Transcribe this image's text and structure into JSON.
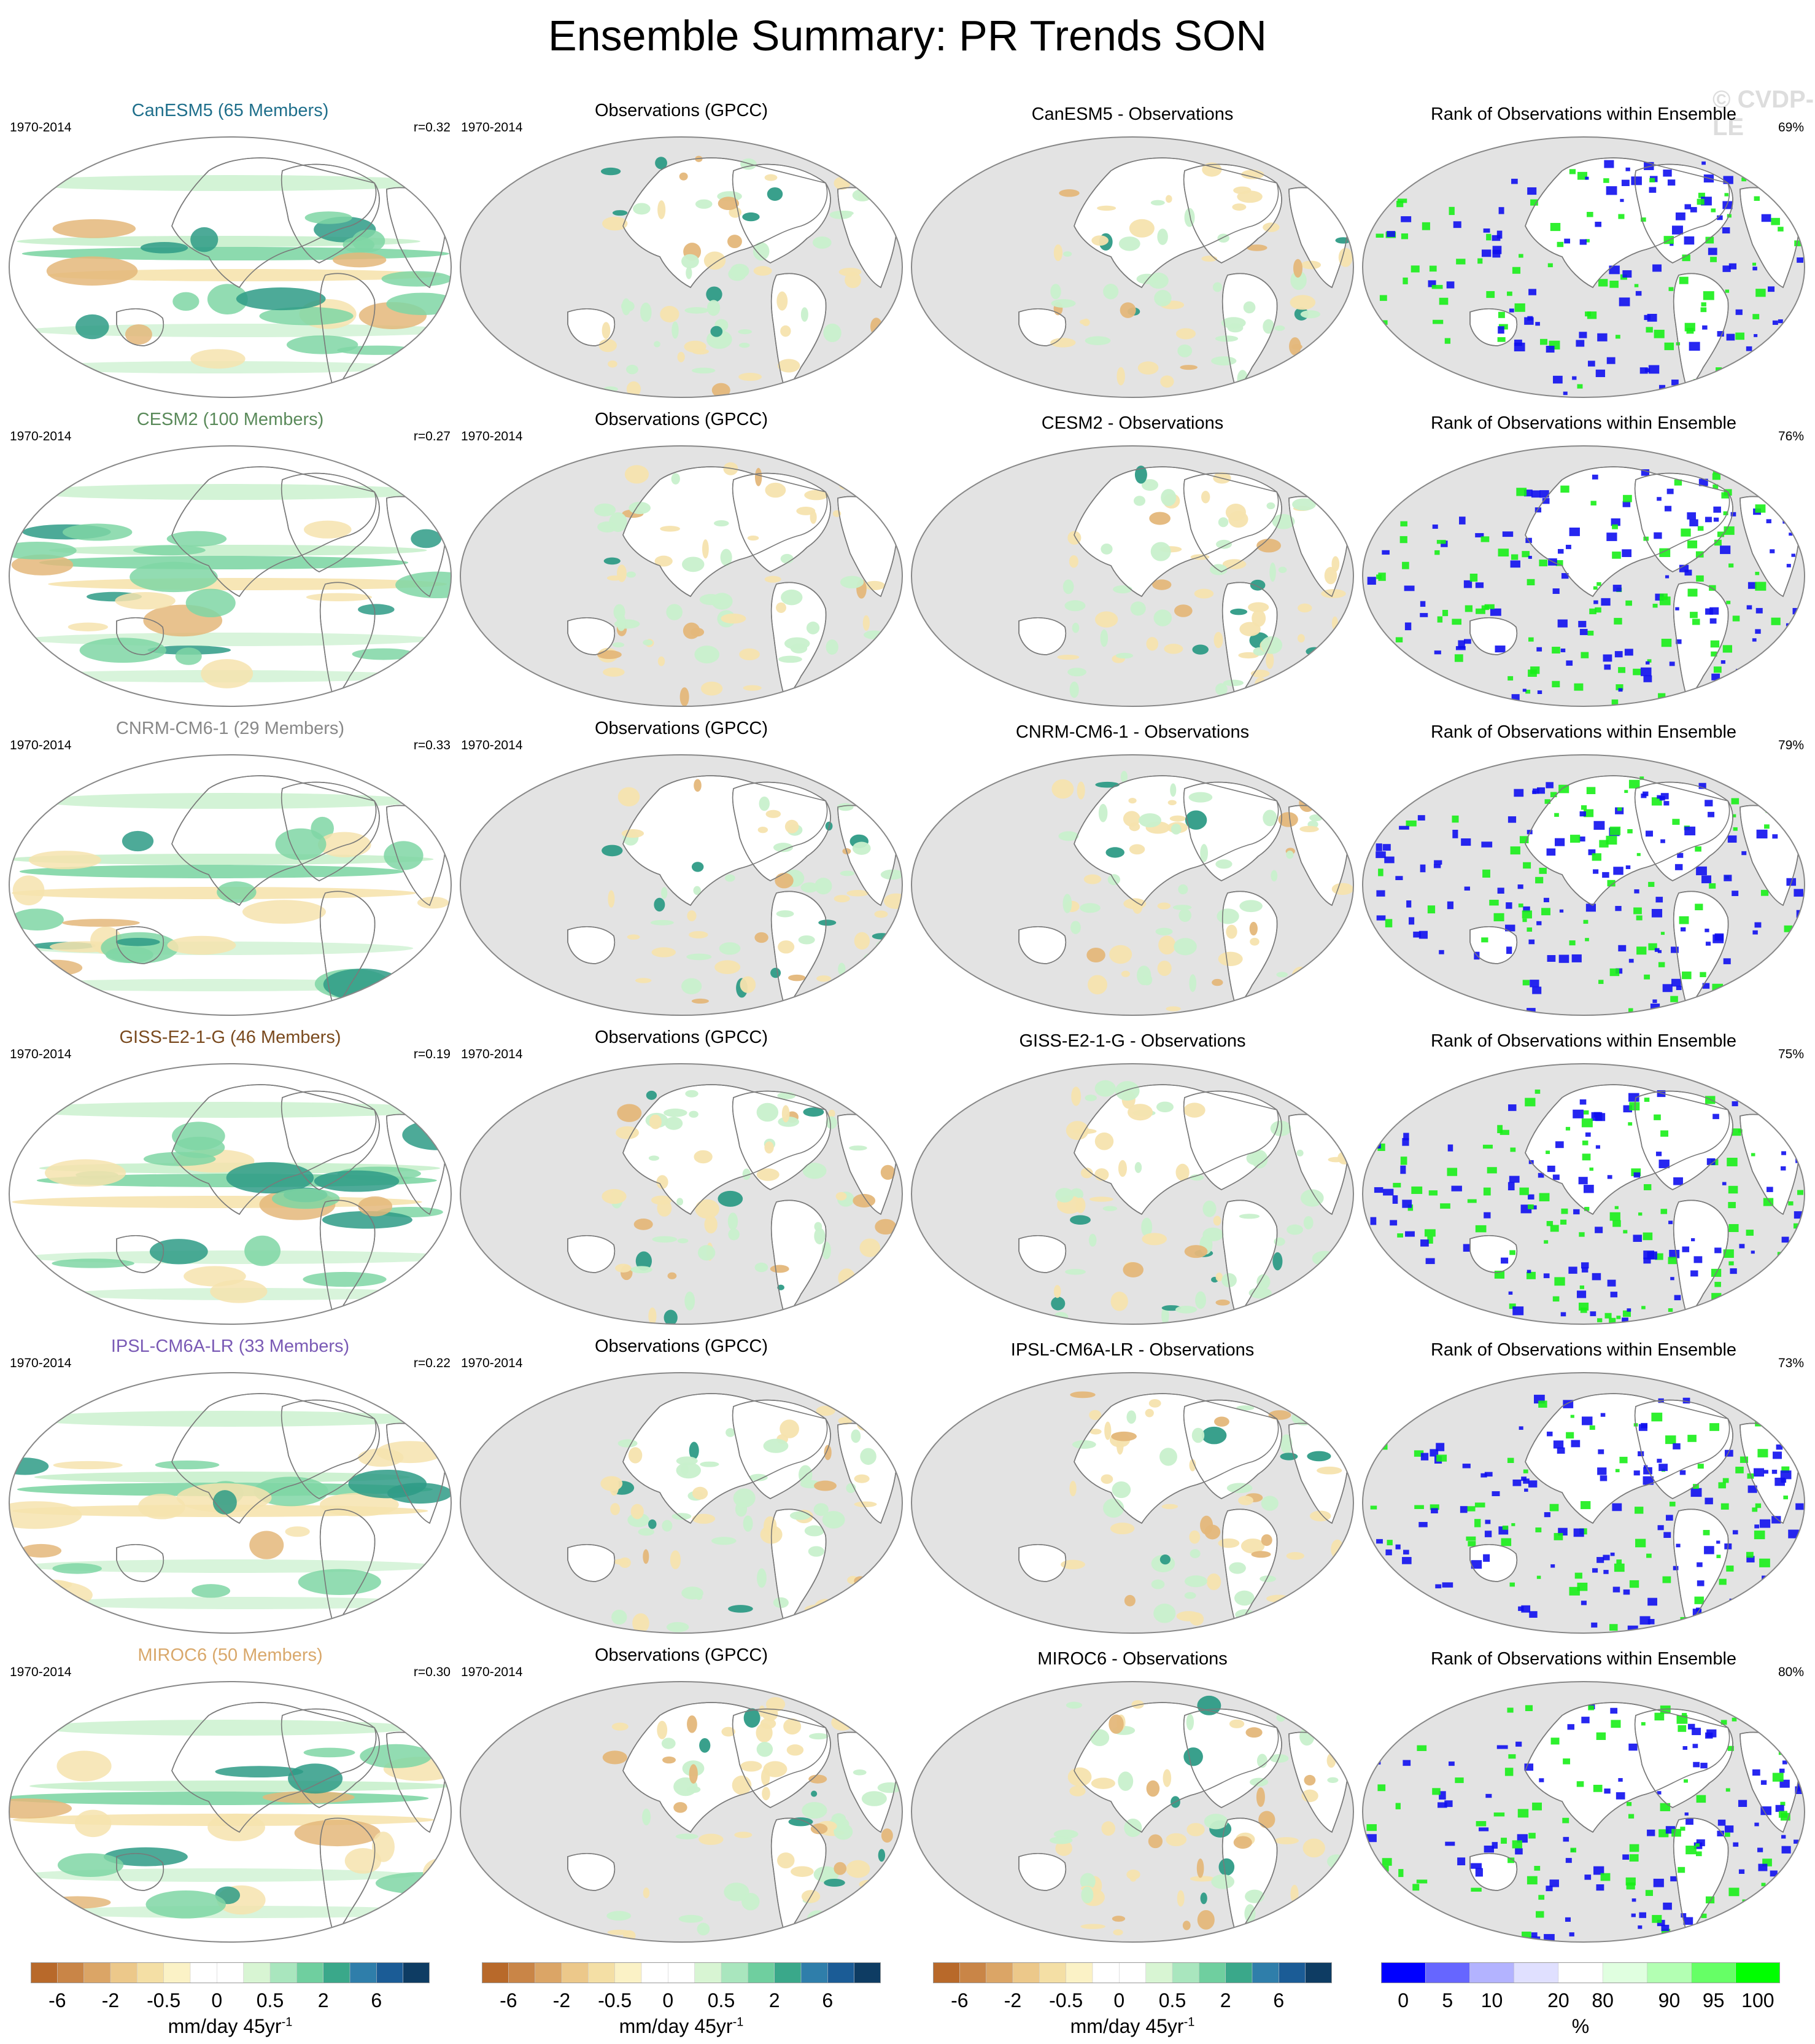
{
  "title": "Ensemble Summary: PR Trends SON",
  "watermark": "© CVDP-LE",
  "rows": [
    {
      "model_title": "CanESM5 (65 Members)",
      "model_color": "#1f6f8b",
      "period": "1970-2014",
      "r": "r=0.32",
      "obs_title": "Observations (GPCC)",
      "obs_period": "1970-2014",
      "diff_title": "CanESM5 - Observations",
      "rank_title": "Rank of Observations within Ensemble",
      "rank_pct": "69%"
    },
    {
      "model_title": "CESM2 (100 Members)",
      "model_color": "#5a8a5a",
      "period": "1970-2014",
      "r": "r=0.27",
      "obs_title": "Observations (GPCC)",
      "obs_period": "1970-2014",
      "diff_title": "CESM2 - Observations",
      "rank_title": "Rank of Observations within Ensemble",
      "rank_pct": "76%"
    },
    {
      "model_title": "CNRM-CM6-1 (29 Members)",
      "model_color": "#888888",
      "period": "1970-2014",
      "r": "r=0.33",
      "obs_title": "Observations (GPCC)",
      "obs_period": "1970-2014",
      "diff_title": "CNRM-CM6-1 - Observations",
      "rank_title": "Rank of Observations within Ensemble",
      "rank_pct": "79%"
    },
    {
      "model_title": "GISS-E2-1-G (46 Members)",
      "model_color": "#7a4a1e",
      "period": "1970-2014",
      "r": "r=0.19",
      "obs_title": "Observations (GPCC)",
      "obs_period": "1970-2014",
      "diff_title": "GISS-E2-1-G - Observations",
      "rank_title": "Rank of Observations within Ensemble",
      "rank_pct": "75%"
    },
    {
      "model_title": "IPSL-CM6A-LR (33 Members)",
      "model_color": "#7a5ab5",
      "period": "1970-2014",
      "r": "r=0.22",
      "obs_title": "Observations (GPCC)",
      "obs_period": "1970-2014",
      "diff_title": "IPSL-CM6A-LR - Observations",
      "rank_title": "Rank of Observations within Ensemble",
      "rank_pct": "73%"
    },
    {
      "model_title": "MIROC6 (50 Members)",
      "model_color": "#d9a86b",
      "period": "1970-2014",
      "r": "r=0.30",
      "obs_title": "Observations (GPCC)",
      "obs_period": "1970-2014",
      "diff_title": "MIROC6 - Observations",
      "rank_title": "Rank of Observations within Ensemble",
      "rank_pct": "80%"
    }
  ],
  "colorbars": [
    {
      "label": "mm/day 45yr",
      "label_sup": "-1",
      "ticks": [
        "-6",
        "-2",
        "-0.5",
        "0",
        "0.5",
        "2",
        "6"
      ],
      "colors": [
        "#b8692a",
        "#c98547",
        "#dba566",
        "#ecc88a",
        "#f4dfa5",
        "#fbf2c6",
        "#ffffff",
        "#ffffff",
        "#d8f5d3",
        "#a9e6be",
        "#6fcf9f",
        "#3aa88a",
        "#2f7eaa",
        "#1b5c96",
        "#0e3c63"
      ]
    },
    {
      "label": "mm/day 45yr",
      "label_sup": "-1",
      "ticks": [
        "-6",
        "-2",
        "-0.5",
        "0",
        "0.5",
        "2",
        "6"
      ],
      "colors": [
        "#b8692a",
        "#c98547",
        "#dba566",
        "#ecc88a",
        "#f4dfa5",
        "#fbf2c6",
        "#ffffff",
        "#ffffff",
        "#d8f5d3",
        "#a9e6be",
        "#6fcf9f",
        "#3aa88a",
        "#2f7eaa",
        "#1b5c96",
        "#0e3c63"
      ]
    },
    {
      "label": "mm/day 45yr",
      "label_sup": "-1",
      "ticks": [
        "-6",
        "-2",
        "-0.5",
        "0",
        "0.5",
        "2",
        "6"
      ],
      "colors": [
        "#b8692a",
        "#c98547",
        "#dba566",
        "#ecc88a",
        "#f4dfa5",
        "#fbf2c6",
        "#ffffff",
        "#ffffff",
        "#d8f5d3",
        "#a9e6be",
        "#6fcf9f",
        "#3aa88a",
        "#2f7eaa",
        "#1b5c96",
        "#0e3c63"
      ]
    },
    {
      "label": "%",
      "label_sup": "",
      "ticks": [
        "0",
        "5",
        "10",
        "20",
        "80",
        "90",
        "95",
        "100"
      ],
      "colors": [
        "#0000ff",
        "#6666ff",
        "#b3b3ff",
        "#e0e0ff",
        "#ffffff",
        "#e0ffe0",
        "#b3ffb3",
        "#66ff66",
        "#00ff00"
      ]
    }
  ],
  "palette": {
    "land_gray": "#e3e3e3",
    "coast": "#7a7a7a",
    "wet_light": "#c8f0cc",
    "wet_mid": "#7fd6a5",
    "wet_dark": "#2e9b86",
    "dry_light": "#f6e3ae",
    "dry_mid": "#e4b77a",
    "rank_low": "#1010ee",
    "rank_high": "#18ee18"
  }
}
